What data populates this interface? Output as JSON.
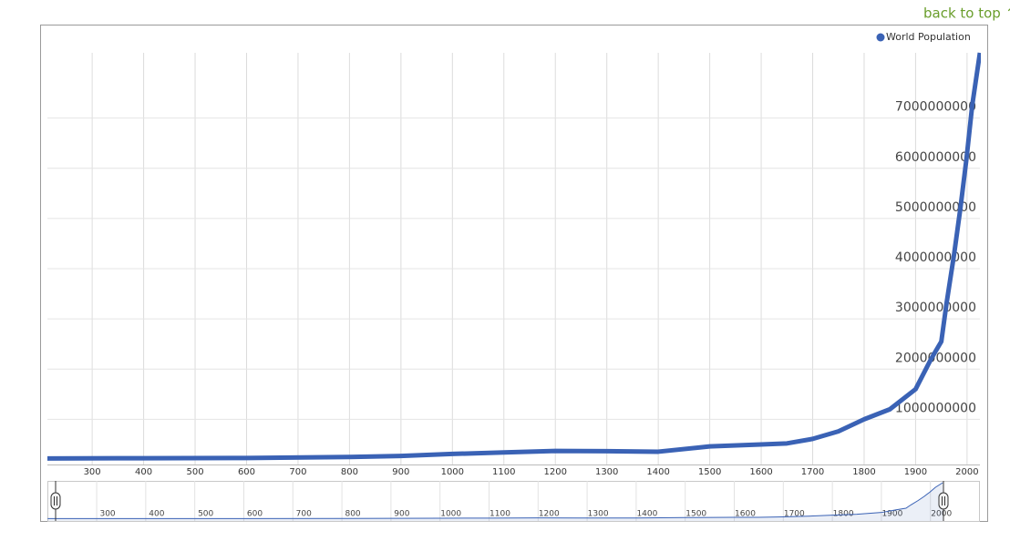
{
  "link": "back to top ↑",
  "chart_data": {
    "type": "line",
    "x": [
      200,
      400,
      600,
      800,
      900,
      1000,
      1100,
      1200,
      1300,
      1400,
      1500,
      1600,
      1650,
      1700,
      1750,
      1800,
      1850,
      1900,
      1930,
      1950,
      1960,
      1975,
      1987,
      1999,
      2010,
      2025
    ],
    "series": [
      {
        "name": "World Population",
        "color": "#3a62b5",
        "values": [
          220000000,
          225000000,
          230000000,
          250000000,
          270000000,
          310000000,
          340000000,
          370000000,
          365000000,
          355000000,
          460000000,
          500000000,
          520000000,
          610000000,
          760000000,
          1000000000,
          1200000000,
          1600000000,
          2200000000,
          2550000000,
          3300000000,
          4300000000,
          5200000000,
          6200000000,
          7250000000,
          8300000000
        ]
      }
    ],
    "xlim": [
      213,
      2025
    ],
    "ylim": [
      100000000,
      8300000000
    ],
    "xticks": [
      300,
      400,
      500,
      600,
      700,
      800,
      900,
      1000,
      1100,
      1200,
      1300,
      1400,
      1500,
      1600,
      1700,
      1800,
      1900,
      2000
    ],
    "yticks": [
      1000000000,
      2000000000,
      3000000000,
      4000000000,
      5000000000,
      6000000000,
      7000000000
    ],
    "grid": true,
    "legend": "top-right"
  }
}
